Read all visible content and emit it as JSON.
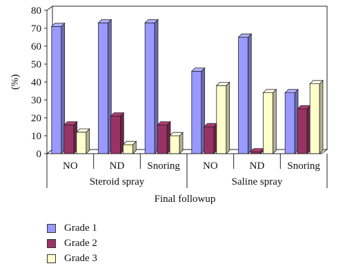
{
  "chart_data": {
    "type": "bar",
    "ylabel": "(%)",
    "xlabel": "Final followup",
    "ylim": [
      0,
      80
    ],
    "yticks": [
      "0",
      "10",
      "20",
      "30",
      "40",
      "50",
      "60",
      "70",
      "80"
    ],
    "groups": [
      {
        "label": "Steroid spray",
        "categories": [
          "NO",
          "ND",
          "Snoring"
        ]
      },
      {
        "label": "Saline spray",
        "categories": [
          "NO",
          "ND",
          "Snoring"
        ]
      }
    ],
    "series": [
      {
        "name": "Grade 1",
        "color": "#9999ff",
        "values": [
          71,
          73,
          73,
          46,
          65,
          34
        ]
      },
      {
        "name": "Grade 2",
        "color": "#993366",
        "values": [
          16,
          21,
          16,
          15,
          1,
          25
        ]
      },
      {
        "name": "Grade 3",
        "color": "#ffffcc",
        "values": [
          12,
          5,
          10,
          38,
          34,
          39
        ]
      }
    ],
    "grid": false,
    "legend_position": "bottom-left"
  }
}
